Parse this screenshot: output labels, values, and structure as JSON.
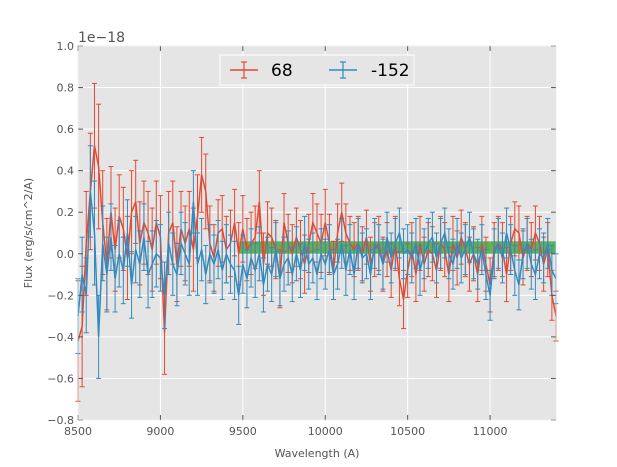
{
  "chart_data": {
    "type": "line",
    "title": "",
    "xlabel": "Wavelength (A)",
    "ylabel": "Flux (erg/s/cm^2/A)",
    "y_offset_label": "1e−18",
    "xlim": [
      8500,
      11400
    ],
    "ylim": [
      -0.8,
      1.0
    ],
    "xticks": [
      "8500",
      "9000",
      "9500",
      "10000",
      "10500",
      "11000"
    ],
    "xtick_values": [
      8500,
      9000,
      9500,
      10000,
      10500,
      11000
    ],
    "yticks": [
      "−0.8",
      "−0.6",
      "−0.4",
      "−0.2",
      "0.0",
      "0.2",
      "0.4",
      "0.6",
      "0.8",
      "1.0"
    ],
    "ytick_values": [
      -0.8,
      -0.6,
      -0.4,
      -0.2,
      0.0,
      0.2,
      0.4,
      0.6,
      0.8,
      1.0
    ],
    "grid": true,
    "legend": {
      "placement": "top-center",
      "columns": 2
    },
    "band": {
      "x": [
        9480,
        11400
      ],
      "y": [
        0.0,
        0.06
      ],
      "color": "#2ca02c"
    },
    "series": [
      {
        "name": "68",
        "color": "#e24a33",
        "x": [
          8500,
          8525,
          8550,
          8575,
          8600,
          8625,
          8650,
          8675,
          8700,
          8725,
          8750,
          8775,
          8800,
          8825,
          8850,
          8875,
          8900,
          8925,
          8950,
          8975,
          9000,
          9025,
          9050,
          9075,
          9100,
          9125,
          9150,
          9175,
          9200,
          9225,
          9250,
          9275,
          9300,
          9325,
          9350,
          9375,
          9400,
          9425,
          9450,
          9475,
          9500,
          9525,
          9550,
          9575,
          9600,
          9625,
          9650,
          9675,
          9700,
          9725,
          9750,
          9775,
          9800,
          9825,
          9850,
          9875,
          9900,
          9925,
          9950,
          9975,
          10000,
          10025,
          10050,
          10075,
          10100,
          10125,
          10150,
          10175,
          10200,
          10225,
          10250,
          10275,
          10300,
          10325,
          10350,
          10375,
          10400,
          10425,
          10450,
          10475,
          10500,
          10525,
          10550,
          10575,
          10600,
          10625,
          10650,
          10675,
          10700,
          10725,
          10750,
          10775,
          10800,
          10825,
          10850,
          10875,
          10900,
          10925,
          10950,
          10975,
          11000,
          11025,
          11050,
          11075,
          11100,
          11125,
          11150,
          11175,
          11200,
          11225,
          11250,
          11275,
          11300,
          11325,
          11350,
          11375,
          11400
        ],
        "y": [
          -0.42,
          -0.35,
          0.05,
          0.3,
          0.52,
          0.42,
          0.15,
          -0.05,
          0.2,
          0.02,
          0.18,
          0.12,
          -0.02,
          0.2,
          0.25,
          0.05,
          0.15,
          0.1,
          0.02,
          0.15,
          0.08,
          -0.38,
          0.1,
          0.15,
          -0.05,
          0.12,
          0.05,
          0.12,
          0.02,
          0.18,
          0.38,
          0.3,
          0.05,
          -0.02,
          0.1,
          0.12,
          0.02,
          0.05,
          0.15,
          0.0,
          0.12,
          0.02,
          0.05,
          0.08,
          0.25,
          -0.05,
          0.1,
          0.08,
          0.02,
          -0.12,
          0.15,
          0.05,
          0.0,
          0.08,
          0.02,
          -0.05,
          0.05,
          0.15,
          0.1,
          0.05,
          0.15,
          0.05,
          -0.08,
          0.1,
          0.2,
          0.1,
          0.05,
          0.02,
          0.05,
          0.0,
          0.08,
          -0.05,
          0.02,
          0.05,
          -0.05,
          0.02,
          -0.08,
          0.05,
          -0.12,
          -0.22,
          -0.08,
          0.02,
          -0.1,
          0.05,
          -0.05,
          0.02,
          0.0,
          -0.08,
          0.05,
          0.02,
          -0.1,
          0.05,
          -0.02,
          0.08,
          0.02,
          -0.05,
          0.0,
          -0.1,
          0.05,
          -0.05,
          -0.15,
          0.02,
          0.05,
          0.02,
          -0.1,
          0.05,
          0.12,
          0.1,
          -0.02,
          0.05,
          0.02,
          0.1,
          0.05,
          -0.05,
          0.02,
          -0.2,
          -0.3
        ],
        "err": [
          0.29,
          0.29,
          0.25,
          0.28,
          0.3,
          0.3,
          0.25,
          0.22,
          0.22,
          0.2,
          0.2,
          0.2,
          0.2,
          0.2,
          0.2,
          0.2,
          0.2,
          0.2,
          0.2,
          0.2,
          0.2,
          0.2,
          0.2,
          0.2,
          0.18,
          0.18,
          0.18,
          0.18,
          0.2,
          0.2,
          0.18,
          0.18,
          0.18,
          0.16,
          0.16,
          0.16,
          0.16,
          0.16,
          0.16,
          0.15,
          0.16,
          0.15,
          0.15,
          0.15,
          0.15,
          0.15,
          0.15,
          0.14,
          0.14,
          0.14,
          0.14,
          0.14,
          0.14,
          0.14,
          0.14,
          0.14,
          0.14,
          0.14,
          0.14,
          0.14,
          0.16,
          0.14,
          0.14,
          0.14,
          0.14,
          0.14,
          0.13,
          0.13,
          0.13,
          0.13,
          0.13,
          0.13,
          0.13,
          0.13,
          0.13,
          0.13,
          0.13,
          0.13,
          0.13,
          0.14,
          0.13,
          0.13,
          0.13,
          0.13,
          0.13,
          0.13,
          0.13,
          0.13,
          0.13,
          0.13,
          0.13,
          0.13,
          0.13,
          0.13,
          0.13,
          0.13,
          0.13,
          0.13,
          0.13,
          0.13,
          0.13,
          0.13,
          0.13,
          0.13,
          0.13,
          0.13,
          0.13,
          0.13,
          0.13,
          0.13,
          0.13,
          0.13,
          0.13,
          0.13,
          0.13,
          0.12,
          0.12
        ]
      },
      {
        "name": "-152",
        "color": "#348abd",
        "x": [
          8500,
          8525,
          8550,
          8575,
          8600,
          8625,
          8650,
          8675,
          8700,
          8725,
          8750,
          8775,
          8800,
          8825,
          8850,
          8875,
          8900,
          8925,
          8950,
          8975,
          9000,
          9025,
          9050,
          9075,
          9100,
          9125,
          9150,
          9175,
          9200,
          9225,
          9250,
          9275,
          9300,
          9325,
          9350,
          9375,
          9400,
          9425,
          9450,
          9475,
          9500,
          9525,
          9550,
          9575,
          9600,
          9625,
          9650,
          9675,
          9700,
          9725,
          9750,
          9775,
          9800,
          9825,
          9850,
          9875,
          9900,
          9925,
          9950,
          9975,
          10000,
          10025,
          10050,
          10075,
          10100,
          10125,
          10150,
          10175,
          10200,
          10225,
          10250,
          10275,
          10300,
          10325,
          10350,
          10375,
          10400,
          10425,
          10450,
          10475,
          10500,
          10525,
          10550,
          10575,
          10600,
          10625,
          10650,
          10675,
          10700,
          10725,
          10750,
          10775,
          10800,
          10825,
          10850,
          10875,
          10900,
          10925,
          10950,
          10975,
          11000,
          11025,
          11050,
          11075,
          11100,
          11125,
          11150,
          11175,
          11200,
          11225,
          11250,
          11275,
          11300,
          11325,
          11350,
          11375,
          11400
        ],
        "y": [
          -0.3,
          -0.1,
          -0.2,
          0.3,
          0.1,
          -0.4,
          0.05,
          -0.1,
          0.08,
          -0.12,
          0.0,
          -0.08,
          0.1,
          -0.15,
          0.02,
          -0.05,
          0.08,
          -0.1,
          -0.05,
          0.0,
          -0.02,
          -0.2,
          0.05,
          -0.05,
          -0.1,
          0.05,
          0.0,
          -0.05,
          0.25,
          -0.05,
          0.02,
          -0.1,
          0.0,
          -0.05,
          0.02,
          -0.08,
          0.0,
          -0.05,
          -0.08,
          -0.2,
          -0.05,
          -0.12,
          -0.02,
          -0.08,
          0.0,
          -0.15,
          -0.05,
          -0.1,
          0.02,
          -0.12,
          -0.05,
          -0.02,
          -0.1,
          0.0,
          -0.08,
          0.05,
          -0.05,
          -0.02,
          -0.1,
          0.0,
          -0.05,
          0.02,
          -0.1,
          -0.05,
          0.05,
          -0.08,
          0.02,
          -0.1,
          0.05,
          -0.02,
          0.0,
          -0.1,
          0.05,
          0.02,
          -0.05,
          0.08,
          -0.02,
          0.05,
          0.1,
          0.0,
          0.02,
          -0.02,
          0.05,
          -0.08,
          0.0,
          0.05,
          0.08,
          -0.02,
          0.05,
          0.1,
          0.0,
          -0.05,
          0.05,
          -0.02,
          0.02,
          0.08,
          0.0,
          -0.05,
          0.02,
          -0.1,
          -0.2,
          0.0,
          0.05,
          -0.02,
          0.1,
          0.02,
          -0.08,
          -0.15,
          0.0,
          0.05,
          -0.05,
          -0.1,
          0.0,
          -0.02,
          0.05,
          -0.08,
          -0.12
        ],
        "err": [
          0.18,
          0.18,
          0.18,
          0.22,
          0.25,
          0.2,
          0.18,
          0.18,
          0.16,
          0.16,
          0.16,
          0.16,
          0.16,
          0.16,
          0.16,
          0.16,
          0.16,
          0.16,
          0.16,
          0.16,
          0.16,
          0.16,
          0.15,
          0.15,
          0.15,
          0.15,
          0.15,
          0.15,
          0.15,
          0.15,
          0.15,
          0.14,
          0.14,
          0.14,
          0.14,
          0.14,
          0.14,
          0.14,
          0.14,
          0.14,
          0.14,
          0.14,
          0.14,
          0.13,
          0.13,
          0.13,
          0.13,
          0.13,
          0.13,
          0.13,
          0.13,
          0.13,
          0.13,
          0.13,
          0.13,
          0.13,
          0.12,
          0.12,
          0.12,
          0.12,
          0.12,
          0.12,
          0.12,
          0.12,
          0.12,
          0.12,
          0.12,
          0.12,
          0.12,
          0.12,
          0.12,
          0.12,
          0.12,
          0.12,
          0.12,
          0.12,
          0.12,
          0.12,
          0.12,
          0.12,
          0.12,
          0.12,
          0.12,
          0.12,
          0.12,
          0.12,
          0.12,
          0.12,
          0.12,
          0.12,
          0.12,
          0.12,
          0.12,
          0.12,
          0.12,
          0.12,
          0.12,
          0.12,
          0.12,
          0.12,
          0.12,
          0.12,
          0.12,
          0.12,
          0.12,
          0.12,
          0.12,
          0.12,
          0.12,
          0.12,
          0.12,
          0.12,
          0.12,
          0.12,
          0.12,
          0.12,
          0.12
        ]
      }
    ]
  }
}
